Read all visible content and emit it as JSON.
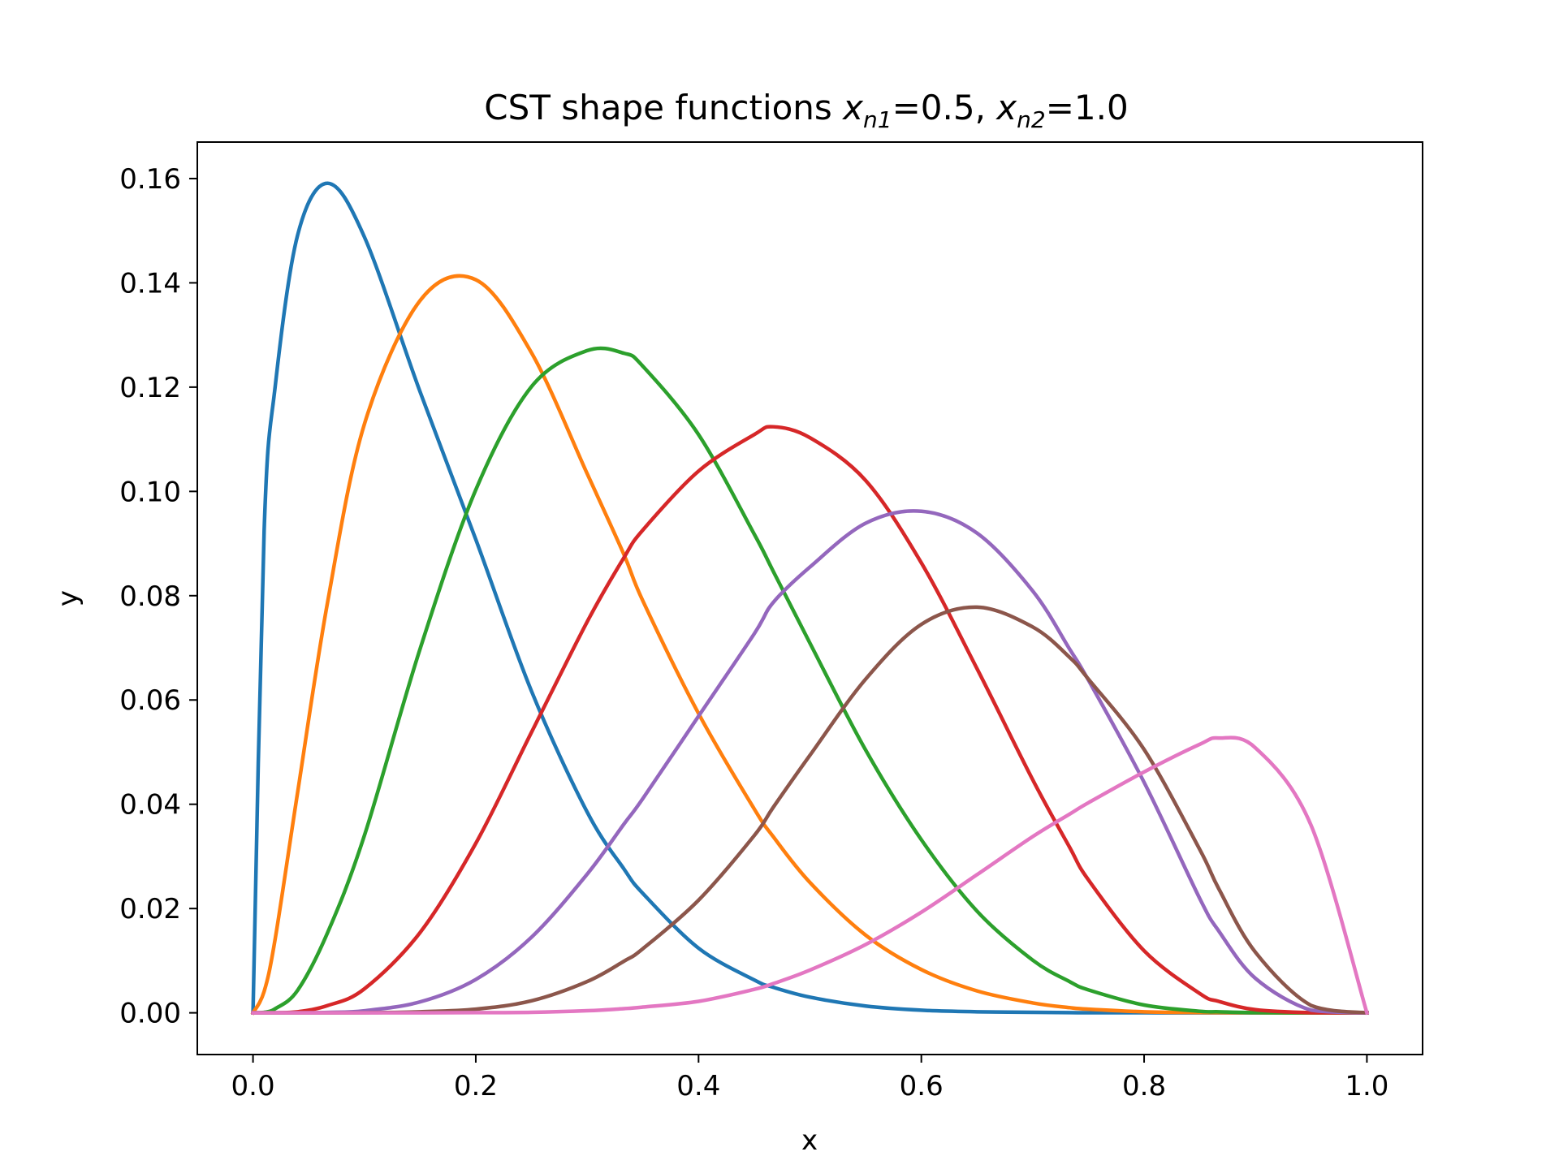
{
  "chart_data": {
    "type": "line",
    "title": {
      "main": "CST shape functions ",
      "var1": "x",
      "sub1": "n1",
      "eq1": "=0.5, ",
      "var2": "x",
      "sub2": "n2",
      "eq2": "=1.0"
    },
    "xlabel": "x",
    "ylabel": "y",
    "xlim": [
      -0.05,
      1.05
    ],
    "ylim": [
      -0.008,
      0.167
    ],
    "xticks": [
      "0.0",
      "0.2",
      "0.4",
      "0.6",
      "0.8",
      "1.0"
    ],
    "yticks": [
      "0.00",
      "0.02",
      "0.04",
      "0.06",
      "0.08",
      "0.10",
      "0.12",
      "0.14",
      "0.16"
    ],
    "grid": false,
    "legend": "none",
    "x": [
      0,
      0.01,
      0.02,
      0.04,
      0.067,
      0.1,
      0.15,
      0.2,
      0.25,
      0.3,
      0.333,
      0.35,
      0.4,
      0.45,
      0.467,
      0.5,
      0.55,
      0.6,
      0.65,
      0.7,
      0.733,
      0.75,
      0.8,
      0.85,
      0.867,
      0.9,
      0.95,
      1.0
    ],
    "series": [
      {
        "color": "#1f77b4",
        "values": [
          0,
          0.0925,
          0.1203,
          0.1491,
          0.1591,
          0.1488,
          0.1191,
          0.0908,
          0.0617,
          0.0385,
          0.0276,
          0.0229,
          0.0124,
          0.0063,
          0.0049,
          0.003,
          0.0013,
          0.0005,
          0.0002,
          0.0001,
          3e-05,
          2e-05,
          1e-05,
          0,
          0,
          0,
          0,
          0
        ]
      },
      {
        "color": "#ff7f0e",
        "values": [
          0,
          0.0041,
          0.0143,
          0.0422,
          0.0788,
          0.1129,
          0.1366,
          0.1406,
          0.1266,
          0.1034,
          0.0879,
          0.079,
          0.0574,
          0.0391,
          0.0338,
          0.025,
          0.0149,
          0.0083,
          0.0042,
          0.0019,
          0.001,
          0.0007,
          0.0002,
          5e-05,
          3e-05,
          1e-05,
          0,
          0
        ]
      },
      {
        "color": "#2ca02c",
        "values": [
          0,
          0.0001,
          0.0008,
          0.0043,
          0.0154,
          0.034,
          0.0698,
          0.1003,
          0.1201,
          0.127,
          0.1265,
          0.124,
          0.1109,
          0.0918,
          0.0847,
          0.0709,
          0.0504,
          0.0332,
          0.0195,
          0.0101,
          0.006,
          0.0044,
          0.0015,
          0.0003,
          0.0002,
          4e-05,
          0,
          0
        ]
      },
      {
        "color": "#d62728",
        "values": [
          0,
          0,
          0,
          0.0002,
          0.0014,
          0.0046,
          0.0154,
          0.0325,
          0.0538,
          0.075,
          0.0873,
          0.0926,
          0.1039,
          0.1109,
          0.1124,
          0.1103,
          0.1021,
          0.0863,
          0.066,
          0.0447,
          0.0318,
          0.0255,
          0.0119,
          0.0037,
          0.0022,
          0.0006,
          2e-05,
          0
        ]
      },
      {
        "color": "#9467bd",
        "values": [
          0,
          0,
          0,
          0,
          8e-05,
          0.0004,
          0.0021,
          0.0064,
          0.0145,
          0.0266,
          0.0362,
          0.0411,
          0.0569,
          0.0727,
          0.0787,
          0.0855,
          0.0939,
          0.0962,
          0.092,
          0.0809,
          0.0698,
          0.0638,
          0.0442,
          0.0219,
          0.0157,
          0.0066,
          0.0005,
          0
        ]
      },
      {
        "color": "#8c564b",
        "values": [
          0,
          0,
          0,
          0,
          0,
          2e-05,
          0.0002,
          0.0007,
          0.0023,
          0.006,
          0.0099,
          0.0123,
          0.0216,
          0.034,
          0.0394,
          0.0494,
          0.064,
          0.0745,
          0.0778,
          0.074,
          0.0682,
          0.064,
          0.0505,
          0.0313,
          0.0238,
          0.0116,
          0.0014,
          0
        ]
      },
      {
        "color": "#e377c2",
        "values": [
          0,
          0,
          0,
          0,
          0,
          0,
          0,
          3e-05,
          0.0001,
          0.0004,
          0.0008,
          0.0011,
          0.0022,
          0.0045,
          0.0056,
          0.0082,
          0.0131,
          0.0193,
          0.0265,
          0.0338,
          0.0381,
          0.0403,
          0.0462,
          0.0515,
          0.0527,
          0.0508,
          0.0359,
          0
        ]
      }
    ]
  }
}
